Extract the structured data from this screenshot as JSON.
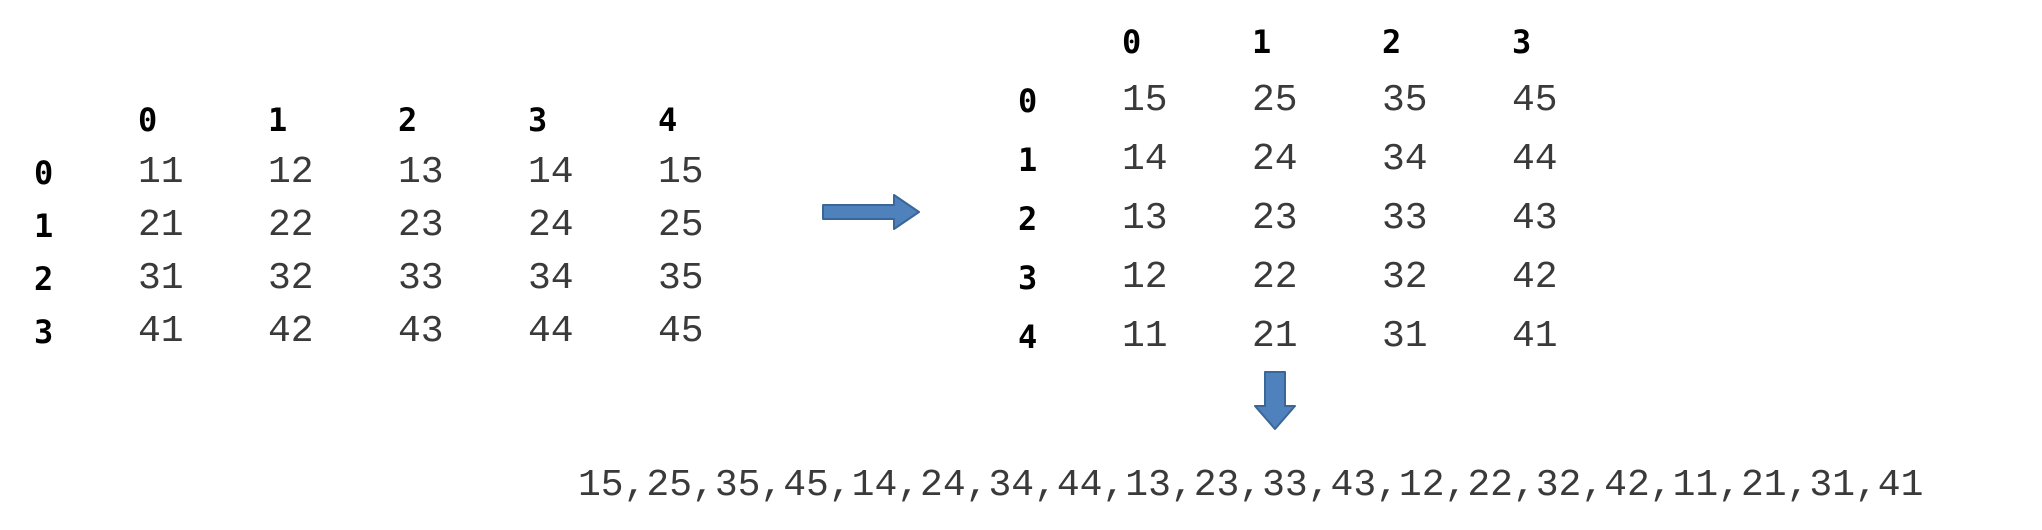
{
  "left_matrix": {
    "col_headers": [
      "0",
      "1",
      "2",
      "3",
      "4"
    ],
    "row_headers": [
      "0",
      "1",
      "2",
      "3"
    ],
    "rows": [
      [
        "11",
        "12",
        "13",
        "14",
        "15"
      ],
      [
        "21",
        "22",
        "23",
        "24",
        "25"
      ],
      [
        "31",
        "32",
        "33",
        "34",
        "35"
      ],
      [
        "41",
        "42",
        "43",
        "44",
        "45"
      ]
    ]
  },
  "right_matrix": {
    "col_headers": [
      "0",
      "1",
      "2",
      "3"
    ],
    "row_headers": [
      "0",
      "1",
      "2",
      "3",
      "4"
    ],
    "rows": [
      [
        "15",
        "25",
        "35",
        "45"
      ],
      [
        "14",
        "24",
        "34",
        "44"
      ],
      [
        "13",
        "23",
        "33",
        "43"
      ],
      [
        "12",
        "22",
        "32",
        "42"
      ],
      [
        "11",
        "21",
        "31",
        "41"
      ]
    ]
  },
  "result": {
    "sequence": "15,25,35,45,14,24,34,44,13,23,33,43,12,22,32,42,11,21,31,41"
  },
  "colors": {
    "arrow_fill": "#4f81bd",
    "arrow_stroke": "#3a6797",
    "header_text": "#000000",
    "cell_text": "#3a3a3a"
  },
  "icons": {
    "right_arrow": "right-arrow-icon",
    "down_arrow": "down-arrow-icon"
  }
}
